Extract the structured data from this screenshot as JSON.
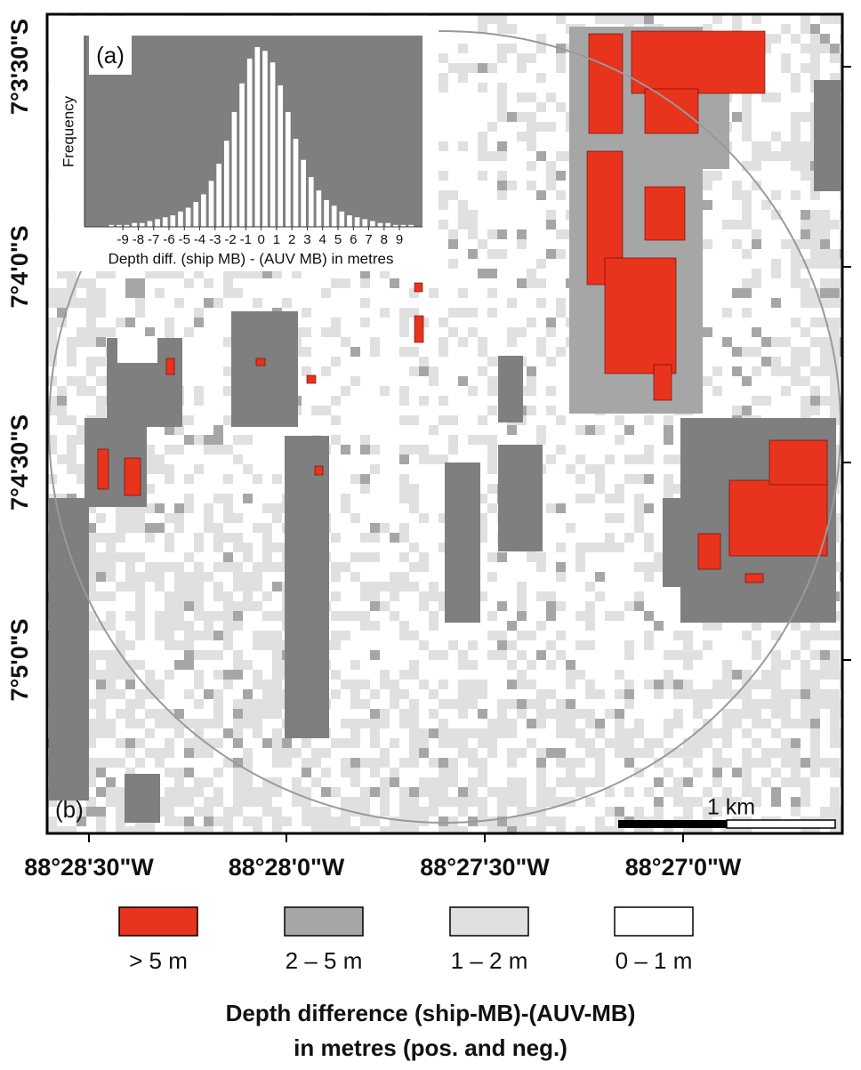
{
  "map": {
    "panel_label": "(b)",
    "lat_ticks": [
      "7°3'30\"S",
      "7°4'0\"S",
      "7°4'30\"S",
      "7°5'0\"S"
    ],
    "lon_ticks": [
      "88°28'30\"W",
      "88°28'0\"W",
      "88°27'30\"W",
      "88°27'0\"W"
    ],
    "scale_bar": "1 km",
    "legend": {
      "items": [
        {
          "label": "> 5 m",
          "color": "#e8341c"
        },
        {
          "label": "2 – 5 m",
          "color": "#a6a6a6"
        },
        {
          "label": "1 – 2 m",
          "color": "#e0e0e0"
        },
        {
          "label": "0 – 1 m",
          "color": "#ffffff"
        }
      ],
      "title": [
        "Depth difference (ship-MB)-(AUV-MB)",
        "in metres (pos. and neg.)"
      ]
    }
  },
  "chart_data": {
    "type": "histogram",
    "panel_label": "(a)",
    "ylabel": "Frequency",
    "xlabel": "Depth diff. (ship MB) - (AUV MB) in metres",
    "bins": [
      -10,
      -9.5,
      -9,
      -8.5,
      -8,
      -7.5,
      -7,
      -6.5,
      -6,
      -5.5,
      -5,
      -4.5,
      -4,
      -3.5,
      -3,
      -2.5,
      -2,
      -1.5,
      -1,
      -0.5,
      0,
      0.5,
      1,
      1.5,
      2,
      2.5,
      3,
      3.5,
      4,
      4.5,
      5,
      5.5,
      6,
      6.5,
      7,
      7.5,
      8,
      8.5,
      9,
      9.5,
      10
    ],
    "counts": [
      1,
      1,
      1,
      2,
      2,
      3,
      4,
      5,
      6,
      8,
      10,
      13,
      17,
      24,
      33,
      45,
      60,
      75,
      88,
      94,
      92,
      86,
      74,
      60,
      46,
      35,
      26,
      19,
      14,
      11,
      8,
      6,
      5,
      4,
      3,
      2,
      2,
      1,
      1,
      1
    ],
    "xlim": [
      -11.5,
      10.5
    ],
    "ylim": [
      0,
      100
    ],
    "xticks": [
      -9,
      -8,
      -7,
      -6,
      -5,
      -4,
      -3,
      -2,
      -1,
      0,
      1,
      2,
      3,
      4,
      5,
      6,
      7,
      8,
      9
    ],
    "color": "#ffffff",
    "background": "#7f7f7f"
  }
}
